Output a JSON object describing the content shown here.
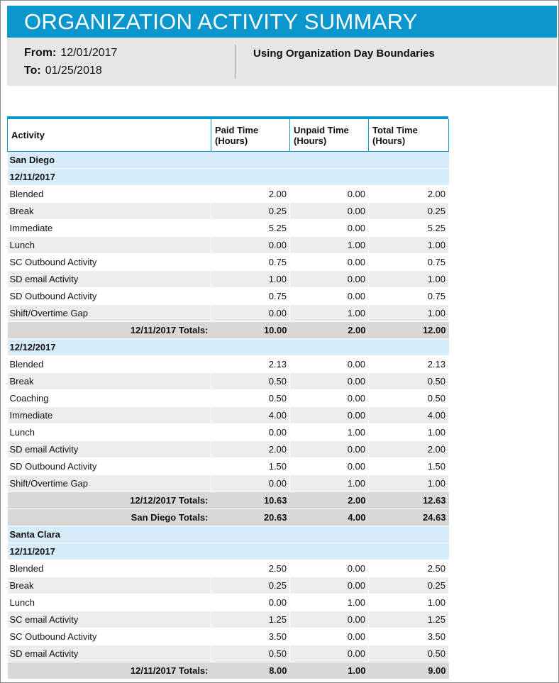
{
  "header": {
    "title": "ORGANIZATION ACTIVITY SUMMARY",
    "from_label": "From:",
    "from_value": "12/01/2017",
    "to_label": "To:",
    "to_value": "01/25/2018",
    "boundaries": "Using Organization Day Boundaries"
  },
  "colors": {
    "accent": "#0b97cd",
    "group_band": "#d6ecfa",
    "total_band": "#d8d8d8",
    "alt_row": "#ededed"
  },
  "table": {
    "columns": [
      "Activity",
      "Paid Time\n(Hours)",
      "Unpaid Time\n(Hours)",
      "Total Time\n(Hours)"
    ],
    "sections": [
      {
        "kind": "group",
        "label": "San Diego"
      },
      {
        "kind": "group",
        "label": "12/11/2017"
      },
      {
        "kind": "row",
        "cells": [
          "Blended",
          "2.00",
          "0.00",
          "2.00"
        ]
      },
      {
        "kind": "row",
        "cells": [
          "Break",
          "0.25",
          "0.00",
          "0.25"
        ]
      },
      {
        "kind": "row",
        "cells": [
          "Immediate",
          "5.25",
          "0.00",
          "5.25"
        ]
      },
      {
        "kind": "row",
        "cells": [
          "Lunch",
          "0.00",
          "1.00",
          "1.00"
        ]
      },
      {
        "kind": "row",
        "cells": [
          "SC Outbound Activity",
          "0.75",
          "0.00",
          "0.75"
        ]
      },
      {
        "kind": "row",
        "cells": [
          "SD email Activity",
          "1.00",
          "0.00",
          "1.00"
        ]
      },
      {
        "kind": "row",
        "cells": [
          "SD Outbound Activity",
          "0.75",
          "0.00",
          "0.75"
        ]
      },
      {
        "kind": "row",
        "cells": [
          "Shift/Overtime Gap",
          "0.00",
          "1.00",
          "1.00"
        ]
      },
      {
        "kind": "total",
        "cells": [
          "12/11/2017 Totals:",
          "10.00",
          "2.00",
          "12.00"
        ]
      },
      {
        "kind": "group",
        "label": "12/12/2017"
      },
      {
        "kind": "row",
        "cells": [
          "Blended",
          "2.13",
          "0.00",
          "2.13"
        ]
      },
      {
        "kind": "row",
        "cells": [
          "Break",
          "0.50",
          "0.00",
          "0.50"
        ]
      },
      {
        "kind": "row",
        "cells": [
          "Coaching",
          "0.50",
          "0.00",
          "0.50"
        ]
      },
      {
        "kind": "row",
        "cells": [
          "Immediate",
          "4.00",
          "0.00",
          "4.00"
        ]
      },
      {
        "kind": "row",
        "cells": [
          "Lunch",
          "0.00",
          "1.00",
          "1.00"
        ]
      },
      {
        "kind": "row",
        "cells": [
          "SD email Activity",
          "2.00",
          "0.00",
          "2.00"
        ]
      },
      {
        "kind": "row",
        "cells": [
          "SD Outbound Activity",
          "1.50",
          "0.00",
          "1.50"
        ]
      },
      {
        "kind": "row",
        "cells": [
          "Shift/Overtime Gap",
          "0.00",
          "1.00",
          "1.00"
        ]
      },
      {
        "kind": "total",
        "cells": [
          "12/12/2017 Totals:",
          "10.63",
          "2.00",
          "12.63"
        ]
      },
      {
        "kind": "total",
        "cells": [
          "San Diego Totals:",
          "20.63",
          "4.00",
          "24.63"
        ]
      },
      {
        "kind": "group",
        "label": "Santa Clara"
      },
      {
        "kind": "group",
        "label": "12/11/2017"
      },
      {
        "kind": "row",
        "cells": [
          "Blended",
          "2.50",
          "0.00",
          "2.50"
        ]
      },
      {
        "kind": "row",
        "cells": [
          "Break",
          "0.25",
          "0.00",
          "0.25"
        ]
      },
      {
        "kind": "row",
        "cells": [
          "Lunch",
          "0.00",
          "1.00",
          "1.00"
        ]
      },
      {
        "kind": "row",
        "cells": [
          "SC email Activity",
          "1.25",
          "0.00",
          "1.25"
        ]
      },
      {
        "kind": "row",
        "cells": [
          "SC Outbound Activity",
          "3.50",
          "0.00",
          "3.50"
        ]
      },
      {
        "kind": "row",
        "cells": [
          "SD email Activity",
          "0.50",
          "0.00",
          "0.50"
        ]
      },
      {
        "kind": "total",
        "cells": [
          "12/11/2017 Totals:",
          "8.00",
          "1.00",
          "9.00"
        ]
      }
    ]
  }
}
